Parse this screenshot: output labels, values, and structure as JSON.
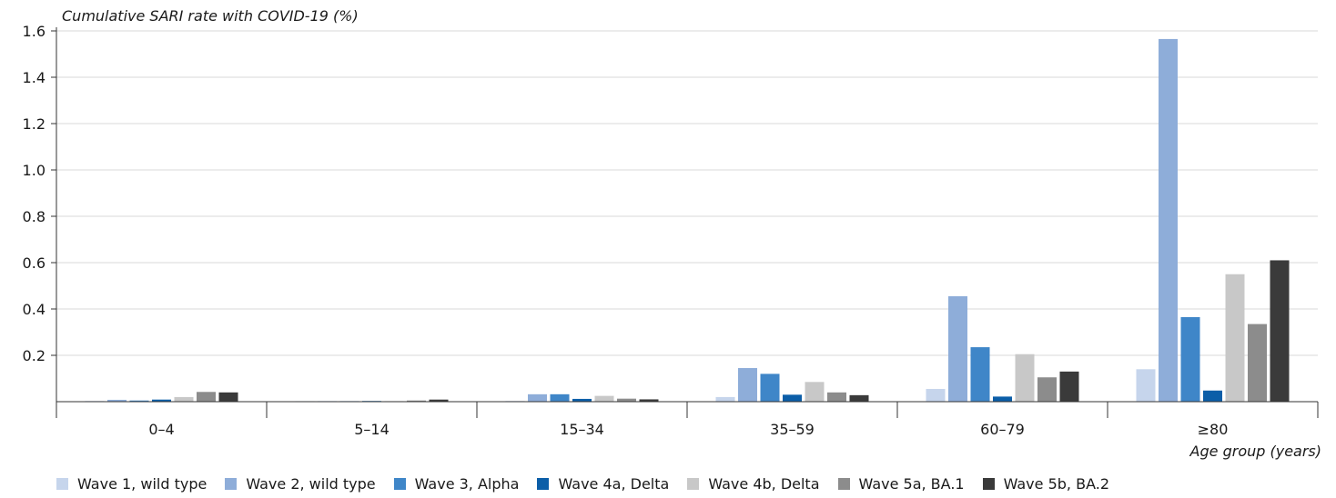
{
  "chart_data": {
    "type": "bar",
    "ylabel": "Cumulative SARI rate with COVID-19 (%)",
    "xlabel": "Age group (years)",
    "categories": [
      "0–4",
      "5–14",
      "15–34",
      "35–59",
      "60–79",
      "≥80"
    ],
    "ylim": [
      0,
      1.6
    ],
    "yticks": [
      "0.2",
      "0.4",
      "0.6",
      "0.8",
      "1.0",
      "1.2",
      "1.4",
      "1.6"
    ],
    "ytick_values": [
      0.2,
      0.4,
      0.6,
      0.8,
      1.0,
      1.2,
      1.4,
      1.6
    ],
    "grid": "horizontal",
    "legend_position": "bottom",
    "series": [
      {
        "name": "Wave 1, wild type",
        "color": "#c6d5ec",
        "values": [
          0.003,
          0.001,
          0.003,
          0.02,
          0.055,
          0.14
        ]
      },
      {
        "name": "Wave 2, wild type",
        "color": "#8eadd9",
        "values": [
          0.008,
          0.002,
          0.032,
          0.145,
          0.455,
          1.565
        ]
      },
      {
        "name": "Wave 3, Alpha",
        "color": "#3f86c8",
        "values": [
          0.005,
          0.002,
          0.032,
          0.12,
          0.235,
          0.365
        ]
      },
      {
        "name": "Wave 4a, Delta",
        "color": "#0b5ea8",
        "values": [
          0.009,
          0.003,
          0.012,
          0.03,
          0.022,
          0.048
        ]
      },
      {
        "name": "Wave 4b, Delta",
        "color": "#c8c8c8",
        "values": [
          0.02,
          0.002,
          0.025,
          0.085,
          0.205,
          0.55
        ]
      },
      {
        "name": "Wave 5a, BA.1",
        "color": "#8c8c8c",
        "values": [
          0.042,
          0.005,
          0.013,
          0.04,
          0.105,
          0.335
        ]
      },
      {
        "name": "Wave 5b, BA.2",
        "color": "#3a3a3a",
        "values": [
          0.04,
          0.009,
          0.01,
          0.028,
          0.13,
          0.61
        ]
      }
    ]
  }
}
